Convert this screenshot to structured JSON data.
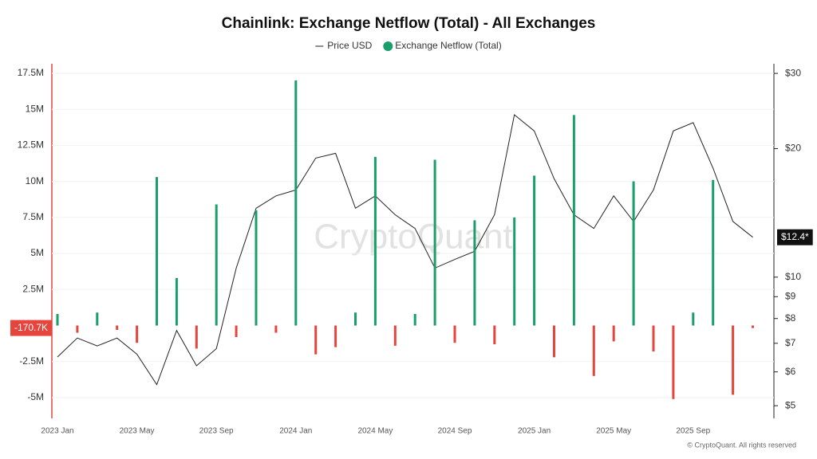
{
  "chart_data": {
    "type": "bar-line",
    "title": "Chainlink: Exchange Netflow (Total) - All Exchanges",
    "watermark": "CryptoQuant",
    "footer": "© CryptoQuant. All rights reserved",
    "x": [
      "2023 Jan",
      null,
      null,
      null,
      "2023 May",
      null,
      null,
      null,
      "2023 Sep",
      null,
      null,
      null,
      "2024 Jan",
      null,
      null,
      null,
      "2024 May",
      null,
      null,
      null,
      "2024 Sep",
      null,
      null,
      null,
      "2025 Jan",
      null,
      null,
      null,
      "2025 May",
      null,
      null,
      null,
      "2025 Sep",
      null,
      null,
      null
    ],
    "series": [
      {
        "name": "Price USD",
        "type": "line",
        "axis": "y2",
        "color": "#222222",
        "values": [
          6.5,
          7.2,
          6.9,
          7.2,
          6.6,
          5.6,
          7.5,
          6.2,
          6.8,
          10.5,
          14.5,
          15.5,
          16,
          19,
          19.5,
          14.5,
          15.5,
          14,
          13,
          10.5,
          11,
          11.5,
          14,
          24,
          22,
          17,
          14,
          13,
          15.5,
          13.5,
          16,
          22,
          23,
          18,
          13.5,
          12.4
        ]
      },
      {
        "name": "Exchange Netflow (Total)",
        "type": "bar",
        "axis": "y",
        "color": "#1a9e6b",
        "negative_color": "#e5453d",
        "values": [
          800000,
          -500000,
          900000,
          -300000,
          -1200000,
          10300000,
          3300000,
          -1600000,
          8400000,
          -800000,
          8000000,
          -500000,
          17000000,
          -2000000,
          -1500000,
          900000,
          11700000,
          -1400000,
          800000,
          11500000,
          -1200000,
          7300000,
          -1300000,
          7500000,
          10400000,
          -2200000,
          14600000,
          -3500000,
          -1100000,
          10000000,
          -1800000,
          -5100000,
          900000,
          10100000,
          -4800000,
          -170700
        ]
      }
    ],
    "ylim": [
      -6440000,
      18160000
    ],
    "yticks": [
      {
        "value": 17500000,
        "label": "17.5M"
      },
      {
        "value": 15000000,
        "label": "15M"
      },
      {
        "value": 12500000,
        "label": "12.5M"
      },
      {
        "value": 10000000,
        "label": "10M"
      },
      {
        "value": 7500000,
        "label": "7.5M"
      },
      {
        "value": 5000000,
        "label": "5M"
      },
      {
        "value": 2500000,
        "label": "2.5M"
      },
      {
        "value": -2500000,
        "label": "-2.5M"
      },
      {
        "value": -5000000,
        "label": "-5M"
      }
    ],
    "y2lim": [
      4.67,
      31.6
    ],
    "y2_log": true,
    "y2ticks": [
      {
        "value": 30,
        "label": "$30"
      },
      {
        "value": 20,
        "label": "$20"
      },
      {
        "value": 10,
        "label": "$10"
      },
      {
        "value": 9,
        "label": "$9"
      },
      {
        "value": 8,
        "label": "$8"
      },
      {
        "value": 7,
        "label": "$7"
      },
      {
        "value": 6,
        "label": "$6"
      },
      {
        "value": 5,
        "label": "$5"
      }
    ],
    "annotations": [
      {
        "text": "-170.7K",
        "value": -170700,
        "axis": "y",
        "color": "#e5453d"
      },
      {
        "text": "$12.4*",
        "value": 12.4,
        "axis": "y2",
        "color": "#111111"
      }
    ],
    "grid": true
  }
}
